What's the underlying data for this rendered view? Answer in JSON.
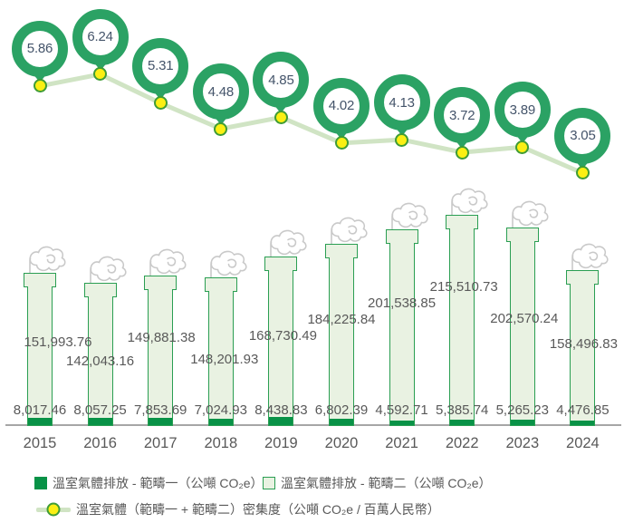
{
  "page": {
    "background": "#ffffff"
  },
  "colors": {
    "scope1_green": "#089247",
    "scope2_fill": "#e9f2e2",
    "bar_border": "#2a9e52",
    "donut_ring": "#2ba264",
    "line_green": "#d0e4c4",
    "dot_fill": "#fbef13",
    "dot_border": "#3f9c35",
    "axis_gray": "#a6a6a6",
    "smoke_gray": "#c9c9c9",
    "text_gray": "#595959",
    "value_text": "#44546a"
  },
  "chart_data": {
    "type": "combo",
    "title": "",
    "categories": [
      "2015",
      "2016",
      "2017",
      "2018",
      "2019",
      "2020",
      "2021",
      "2022",
      "2023",
      "2024"
    ],
    "series": [
      {
        "name": "溫室氣體排放 - 範疇一（公噸 CO₂e）",
        "type": "bar",
        "stack": "emissions",
        "values": [
          8017.46,
          8057.25,
          7853.69,
          7024.93,
          8438.83,
          6802.39,
          4592.71,
          5385.74,
          5265.23,
          4476.85
        ]
      },
      {
        "name": "溫室氣體排放 - 範疇二（公噸 CO₂e）",
        "type": "bar",
        "stack": "emissions",
        "values": [
          151993.76,
          142043.16,
          149881.38,
          148201.93,
          168730.49,
          184225.84,
          201538.85,
          215510.73,
          202570.24,
          158496.83
        ]
      },
      {
        "name": "溫室氣體（範疇一 + 範疇二）密集度（公噸 CO₂e / 百萬人民幣）",
        "type": "line",
        "values": [
          5.86,
          6.24,
          5.31,
          4.48,
          4.85,
          4.02,
          4.13,
          3.72,
          3.89,
          3.05
        ]
      }
    ],
    "value_labels": "every point labeled",
    "legend_position": "bottom",
    "x_axis": {
      "visible": true
    },
    "y_axis": {
      "visible": false,
      "gridlines": false
    }
  },
  "legend": {
    "items": [
      {
        "label": "溫室氣體排放 - 範疇一（公噸 CO₂e）",
        "swatch": "dark-green-square"
      },
      {
        "label": "溫室氣體排放 - 範疇二（公噸 CO₂e）",
        "swatch": "light-green-square"
      },
      {
        "label": "溫室氣體（範疇一 + 範疇二）密集度（公噸 CO₂e / 百萬人民幣）",
        "swatch": "line-with-dot"
      }
    ]
  }
}
